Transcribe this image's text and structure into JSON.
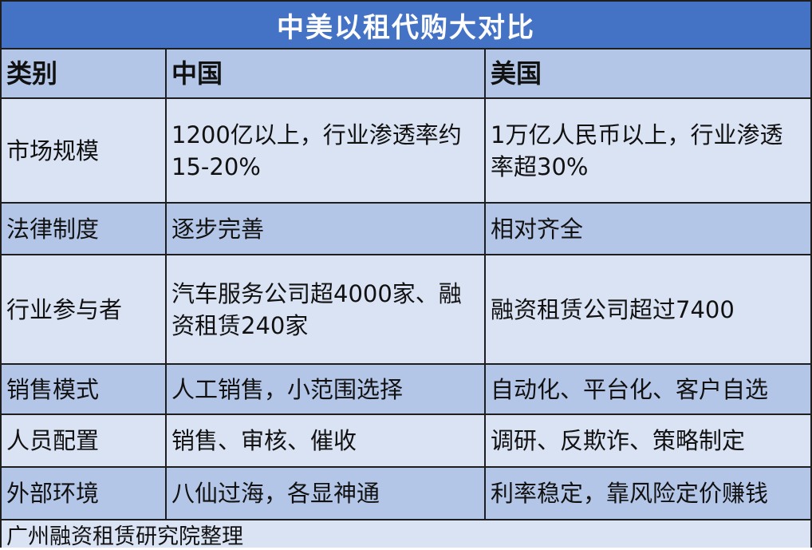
{
  "title": "中美以租代购大对比",
  "headers": [
    "类别",
    "中国",
    "美国"
  ],
  "rows": [
    {
      "category": "市场规模",
      "china": "1200亿以上，行业渗透率约15-20%",
      "usa": "1万亿人民币以上，行业渗透率超30%"
    },
    {
      "category": "法律制度",
      "china": "逐步完善",
      "usa": "相对齐全"
    },
    {
      "category": "行业参与者",
      "china": "汽车服务公司超4000家、融资租赁240家",
      "usa": "融资租赁公司超过7400"
    },
    {
      "category": "销售模式",
      "china": "人工销售，小范围选择",
      "usa": "自动化、平台化、客户自选"
    },
    {
      "category": "人员配置",
      "china": "销售、审核、催收",
      "usa": "调研、反欺诈、策略制定"
    },
    {
      "category": "外部环境",
      "china": "八仙过海，各显神通",
      "usa": "利率稳定，靠风险定价赚钱"
    }
  ],
  "footer": "广州融资租赁研究院整理",
  "colors": {
    "title_bg": "#4472c4",
    "header_bg": "#b4c6e7",
    "row_light": "#dae3f3",
    "row_dark": "#b4c6e7"
  }
}
